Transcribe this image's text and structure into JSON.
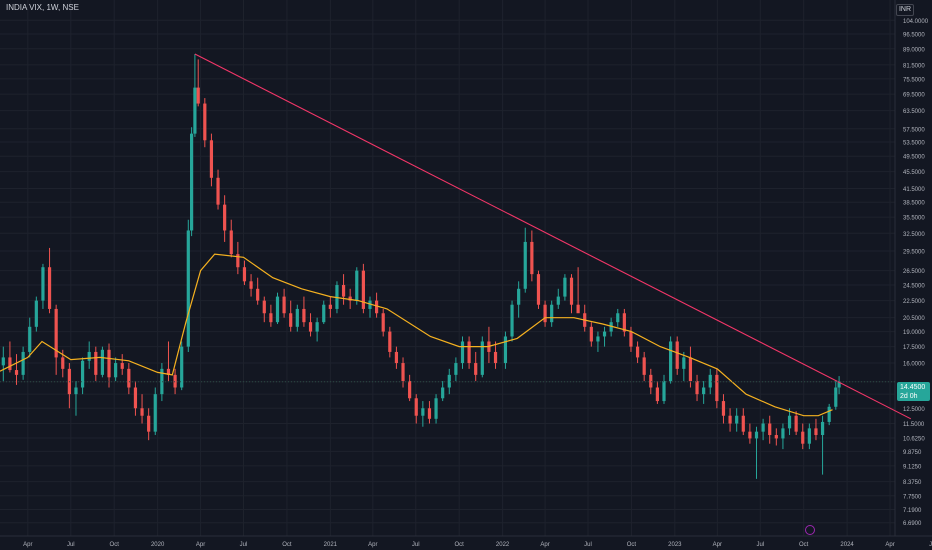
{
  "header": {
    "title": "INDIA VIX, 1W, NSE",
    "currency": "INR"
  },
  "last_price": {
    "value": "14.4500",
    "countdown": "2d 0h"
  },
  "colors": {
    "background": "#131722",
    "grid": "#1e222d",
    "up": "#26a69a",
    "down": "#ef5350",
    "moving_average": "#f5b120",
    "trendline": "#f23668",
    "text": "#b2b5be"
  },
  "chart_data": {
    "type": "candlestick",
    "ticker": "INDIA VIX",
    "interval": "1W",
    "exchange": "NSE",
    "y_scale": "log",
    "ylim": [
      6.5,
      110
    ],
    "xlim": [
      "2019-02",
      "2024-07"
    ],
    "y_ticks": [
      "104.0000",
      "96.5000",
      "89.0000",
      "81.5000",
      "75.5000",
      "69.5000",
      "63.5000",
      "57.5000",
      "53.5000",
      "49.5000",
      "45.5000",
      "41.5000",
      "38.5000",
      "35.5000",
      "32.5000",
      "29.5000",
      "26.5000",
      "24.5000",
      "22.5000",
      "20.5000",
      "19.0000",
      "17.5000",
      "16.0000",
      "14.4500",
      "13.5000",
      "12.5000",
      "11.5000",
      "10.6250",
      "9.8750",
      "9.1250",
      "8.3750",
      "7.7500",
      "7.1900",
      "6.6900"
    ],
    "x_ticks": [
      "Apr",
      "Jul",
      "Oct",
      "2020",
      "Apr",
      "Jul",
      "Oct",
      "2021",
      "Apr",
      "Jul",
      "Oct",
      "2022",
      "Apr",
      "Jul",
      "Oct",
      "2023",
      "Apr",
      "Jul",
      "Oct",
      "2024",
      "Apr",
      "Jul"
    ],
    "tick_dates": [
      "2019-04",
      "2019-07",
      "2019-10",
      "2020-01",
      "2020-04",
      "2020-07",
      "2020-10",
      "2021-01",
      "2021-04",
      "2021-07",
      "2021-10",
      "2022-01",
      "2022-04",
      "2022-07",
      "2022-10",
      "2023-01",
      "2023-04",
      "2023-07",
      "2023-10",
      "2024-01",
      "2024-04",
      "2024-07"
    ],
    "moving_average_path": [
      [
        "2019-02",
        15.3
      ],
      [
        "2019-04",
        16.5
      ],
      [
        "2019-05",
        18.0
      ],
      [
        "2019-07",
        16.3
      ],
      [
        "2019-09",
        16.5
      ],
      [
        "2019-11",
        16.2
      ],
      [
        "2020-01",
        15.2
      ],
      [
        "2020-02",
        15.0
      ],
      [
        "2020-03",
        20.0
      ],
      [
        "2020-04",
        26.5
      ],
      [
        "2020-05",
        29.0
      ],
      [
        "2020-07",
        28.5
      ],
      [
        "2020-09",
        25.5
      ],
      [
        "2020-11",
        24.0
      ],
      [
        "2021-01",
        23.0
      ],
      [
        "2021-03",
        22.5
      ],
      [
        "2021-05",
        21.5
      ],
      [
        "2021-08",
        18.5
      ],
      [
        "2021-10",
        17.5
      ],
      [
        "2021-12",
        17.5
      ],
      [
        "2022-02",
        18.3
      ],
      [
        "2022-04",
        20.5
      ],
      [
        "2022-06",
        20.5
      ],
      [
        "2022-08",
        19.8
      ],
      [
        "2022-10",
        19.0
      ],
      [
        "2022-12",
        17.5
      ],
      [
        "2023-02",
        16.5
      ],
      [
        "2023-04",
        15.5
      ],
      [
        "2023-06",
        13.5
      ],
      [
        "2023-08",
        12.6
      ],
      [
        "2023-10",
        12.0
      ],
      [
        "2023-11",
        12.0
      ],
      [
        "2023-12",
        12.4
      ]
    ],
    "trendline": {
      "start": [
        "2020-03-20",
        86.5
      ],
      "end": [
        "2024-05-15",
        11.8
      ]
    },
    "candles": [
      [
        "2019-02-08",
        15.8,
        17.5,
        14.5,
        16.5
      ],
      [
        "2019-02-22",
        16.5,
        18.0,
        15.2,
        15.4
      ],
      [
        "2019-03-08",
        15.4,
        16.8,
        14.2,
        15.0
      ],
      [
        "2019-03-22",
        15.0,
        17.5,
        14.6,
        17.0
      ],
      [
        "2019-04-05",
        17.0,
        20.5,
        16.5,
        19.5
      ],
      [
        "2019-04-19",
        19.5,
        23.0,
        19.0,
        22.5
      ],
      [
        "2019-05-03",
        22.5,
        27.5,
        21.5,
        27.0
      ],
      [
        "2019-05-17",
        27.0,
        30.0,
        21.0,
        21.5
      ],
      [
        "2019-05-31",
        21.5,
        22.0,
        15.0,
        16.5
      ],
      [
        "2019-06-14",
        16.5,
        17.2,
        14.8,
        15.5
      ],
      [
        "2019-06-28",
        15.5,
        16.0,
        12.5,
        13.5
      ],
      [
        "2019-07-12",
        13.5,
        14.5,
        12.0,
        14.0
      ],
      [
        "2019-07-26",
        14.0,
        16.5,
        13.5,
        16.2
      ],
      [
        "2019-08-09",
        16.2,
        18.0,
        15.5,
        17.0
      ],
      [
        "2019-08-23",
        17.0,
        17.5,
        14.5,
        15.0
      ],
      [
        "2019-09-06",
        15.0,
        17.5,
        14.8,
        17.2
      ],
      [
        "2019-09-20",
        17.2,
        17.8,
        14.0,
        14.8
      ],
      [
        "2019-10-04",
        14.8,
        16.5,
        14.5,
        16.0
      ],
      [
        "2019-10-18",
        16.0,
        16.8,
        15.0,
        15.5
      ],
      [
        "2019-11-01",
        15.5,
        16.0,
        13.5,
        14.0
      ],
      [
        "2019-11-15",
        14.0,
        14.5,
        12.0,
        12.5
      ],
      [
        "2019-11-29",
        12.5,
        13.5,
        11.5,
        12.0
      ],
      [
        "2019-12-13",
        12.0,
        12.5,
        10.5,
        11.0
      ],
      [
        "2019-12-27",
        11.0,
        14.0,
        10.8,
        13.5
      ],
      [
        "2020-01-10",
        13.5,
        16.0,
        13.0,
        15.5
      ],
      [
        "2020-01-24",
        15.5,
        18.0,
        14.5,
        15.0
      ],
      [
        "2020-02-07",
        15.0,
        15.5,
        13.5,
        14.0
      ],
      [
        "2020-02-21",
        14.0,
        18.0,
        13.8,
        17.5
      ],
      [
        "2020-03-06",
        17.5,
        35.0,
        17.0,
        33.0
      ],
      [
        "2020-03-13",
        33.0,
        58.0,
        32.0,
        56.0
      ],
      [
        "2020-03-20",
        56.0,
        86.5,
        55.0,
        72.0
      ],
      [
        "2020-03-27",
        72.0,
        84.0,
        65.0,
        66.0
      ],
      [
        "2020-04-10",
        66.0,
        68.0,
        52.0,
        54.0
      ],
      [
        "2020-04-24",
        54.0,
        56.0,
        42.0,
        44.0
      ],
      [
        "2020-05-08",
        44.0,
        46.0,
        37.0,
        38.0
      ],
      [
        "2020-05-22",
        38.0,
        40.0,
        31.0,
        33.0
      ],
      [
        "2020-06-05",
        33.0,
        35.0,
        28.5,
        29.0
      ],
      [
        "2020-06-19",
        29.0,
        31.0,
        26.0,
        27.0
      ],
      [
        "2020-07-03",
        27.0,
        28.0,
        24.5,
        25.0
      ],
      [
        "2020-07-17",
        25.0,
        26.0,
        23.0,
        24.0
      ],
      [
        "2020-07-31",
        24.0,
        25.5,
        22.0,
        22.5
      ],
      [
        "2020-08-14",
        22.5,
        23.0,
        20.0,
        21.0
      ],
      [
        "2020-08-28",
        21.0,
        22.0,
        19.5,
        20.0
      ],
      [
        "2020-09-11",
        20.0,
        23.5,
        19.8,
        23.0
      ],
      [
        "2020-09-25",
        23.0,
        24.0,
        20.5,
        21.0
      ],
      [
        "2020-10-09",
        21.0,
        22.5,
        19.0,
        19.5
      ],
      [
        "2020-10-23",
        19.5,
        22.0,
        19.0,
        21.5
      ],
      [
        "2020-11-06",
        21.5,
        23.0,
        19.5,
        20.0
      ],
      [
        "2020-11-20",
        20.0,
        21.0,
        18.5,
        19.0
      ],
      [
        "2020-12-04",
        19.0,
        20.5,
        18.0,
        20.0
      ],
      [
        "2020-12-18",
        20.0,
        22.5,
        19.8,
        22.0
      ],
      [
        "2021-01-01",
        22.0,
        23.0,
        20.5,
        21.5
      ],
      [
        "2021-01-15",
        21.5,
        25.0,
        21.0,
        24.5
      ],
      [
        "2021-01-29",
        24.5,
        26.0,
        22.0,
        23.0
      ],
      [
        "2021-02-12",
        23.0,
        24.0,
        21.5,
        22.5
      ],
      [
        "2021-02-26",
        22.5,
        27.0,
        22.0,
        26.5
      ],
      [
        "2021-03-12",
        26.5,
        27.5,
        21.0,
        21.5
      ],
      [
        "2021-03-26",
        21.5,
        23.0,
        20.5,
        22.5
      ],
      [
        "2021-04-09",
        22.5,
        23.5,
        20.5,
        21.0
      ],
      [
        "2021-04-23",
        21.0,
        21.5,
        18.5,
        19.0
      ],
      [
        "2021-05-07",
        19.0,
        19.5,
        16.5,
        17.0
      ],
      [
        "2021-05-21",
        17.0,
        17.5,
        15.5,
        16.0
      ],
      [
        "2021-06-04",
        16.0,
        16.5,
        14.0,
        14.5
      ],
      [
        "2021-06-18",
        14.5,
        15.0,
        13.0,
        13.2
      ],
      [
        "2021-07-02",
        13.2,
        13.5,
        11.5,
        12.0
      ],
      [
        "2021-07-16",
        12.0,
        13.0,
        11.3,
        12.5
      ],
      [
        "2021-07-30",
        12.5,
        13.0,
        11.5,
        11.8
      ],
      [
        "2021-08-13",
        11.8,
        13.5,
        11.5,
        13.2
      ],
      [
        "2021-08-27",
        13.2,
        14.5,
        13.0,
        14.0
      ],
      [
        "2021-09-10",
        14.0,
        15.5,
        13.5,
        15.0
      ],
      [
        "2021-09-24",
        15.0,
        16.5,
        14.5,
        16.0
      ],
      [
        "2021-10-08",
        16.0,
        18.5,
        15.5,
        18.0
      ],
      [
        "2021-10-22",
        18.0,
        18.5,
        15.5,
        16.0
      ],
      [
        "2021-11-05",
        16.0,
        17.0,
        14.5,
        15.0
      ],
      [
        "2021-11-19",
        15.0,
        18.5,
        14.8,
        18.0
      ],
      [
        "2021-12-03",
        18.0,
        19.5,
        16.0,
        17.0
      ],
      [
        "2021-12-17",
        17.0,
        18.0,
        15.5,
        16.0
      ],
      [
        "2022-01-07",
        16.0,
        19.0,
        15.5,
        18.5
      ],
      [
        "2022-01-21",
        18.5,
        22.5,
        18.0,
        22.0
      ],
      [
        "2022-02-04",
        22.0,
        25.0,
        20.5,
        24.0
      ],
      [
        "2022-02-18",
        24.0,
        33.5,
        23.5,
        31.0
      ],
      [
        "2022-03-04",
        31.0,
        33.0,
        25.0,
        26.0
      ],
      [
        "2022-03-18",
        26.0,
        26.5,
        21.5,
        22.0
      ],
      [
        "2022-04-01",
        22.0,
        22.5,
        19.5,
        20.0
      ],
      [
        "2022-04-15",
        20.0,
        22.5,
        19.5,
        22.0
      ],
      [
        "2022-04-29",
        22.0,
        24.0,
        21.5,
        23.0
      ],
      [
        "2022-05-13",
        23.0,
        26.0,
        22.5,
        25.5
      ],
      [
        "2022-05-27",
        25.5,
        26.0,
        21.0,
        22.0
      ],
      [
        "2022-06-10",
        22.0,
        27.0,
        21.5,
        21.0
      ],
      [
        "2022-06-24",
        21.0,
        22.0,
        19.0,
        19.5
      ],
      [
        "2022-07-08",
        19.5,
        20.0,
        17.5,
        18.0
      ],
      [
        "2022-07-22",
        18.0,
        19.0,
        17.0,
        18.5
      ],
      [
        "2022-08-05",
        18.5,
        19.5,
        17.5,
        19.0
      ],
      [
        "2022-08-19",
        19.0,
        20.5,
        18.5,
        20.0
      ],
      [
        "2022-09-02",
        20.0,
        21.5,
        19.5,
        21.0
      ],
      [
        "2022-09-16",
        21.0,
        21.5,
        18.5,
        19.0
      ],
      [
        "2022-09-30",
        19.0,
        19.5,
        17.0,
        17.5
      ],
      [
        "2022-10-14",
        17.5,
        18.0,
        16.0,
        16.5
      ],
      [
        "2022-10-28",
        16.5,
        17.0,
        14.5,
        15.0
      ],
      [
        "2022-11-11",
        15.0,
        15.5,
        13.5,
        14.0
      ],
      [
        "2022-11-25",
        14.0,
        14.5,
        12.8,
        13.0
      ],
      [
        "2022-12-09",
        13.0,
        15.0,
        12.8,
        14.5
      ],
      [
        "2022-12-23",
        14.5,
        18.5,
        14.3,
        18.0
      ],
      [
        "2023-01-06",
        18.0,
        18.5,
        15.0,
        15.5
      ],
      [
        "2023-01-20",
        15.5,
        17.0,
        14.5,
        16.5
      ],
      [
        "2023-02-03",
        16.5,
        17.5,
        14.0,
        14.5
      ],
      [
        "2023-02-17",
        14.5,
        15.0,
        13.0,
        13.5
      ],
      [
        "2023-03-03",
        13.5,
        14.5,
        12.8,
        14.0
      ],
      [
        "2023-03-17",
        14.0,
        15.5,
        13.5,
        15.0
      ],
      [
        "2023-03-31",
        15.0,
        15.5,
        12.5,
        13.0
      ],
      [
        "2023-04-14",
        13.0,
        13.5,
        11.5,
        12.0
      ],
      [
        "2023-04-28",
        12.0,
        12.5,
        11.0,
        11.5
      ],
      [
        "2023-05-12",
        11.5,
        12.5,
        11.0,
        12.0
      ],
      [
        "2023-05-26",
        12.0,
        12.5,
        10.8,
        11.0
      ],
      [
        "2023-06-09",
        11.0,
        11.5,
        10.3,
        10.6
      ],
      [
        "2023-06-23",
        10.6,
        11.3,
        8.5,
        11.0
      ],
      [
        "2023-07-07",
        11.0,
        11.8,
        10.5,
        11.5
      ],
      [
        "2023-07-21",
        11.5,
        12.0,
        10.3,
        10.8
      ],
      [
        "2023-08-04",
        10.8,
        11.2,
        10.2,
        10.6
      ],
      [
        "2023-08-18",
        10.6,
        11.5,
        10.0,
        11.2
      ],
      [
        "2023-09-01",
        11.2,
        12.5,
        10.8,
        12.0
      ],
      [
        "2023-09-15",
        12.0,
        12.3,
        10.8,
        11.0
      ],
      [
        "2023-09-29",
        11.0,
        11.5,
        10.0,
        10.3
      ],
      [
        "2023-10-13",
        10.3,
        11.5,
        10.0,
        11.2
      ],
      [
        "2023-10-27",
        11.2,
        11.8,
        10.5,
        10.8
      ],
      [
        "2023-11-10",
        10.8,
        12.0,
        8.7,
        11.6
      ],
      [
        "2023-11-24",
        11.6,
        12.8,
        11.4,
        12.6
      ],
      [
        "2023-12-08",
        12.6,
        14.5,
        12.4,
        14.0
      ],
      [
        "2023-12-15",
        14.0,
        14.9,
        13.5,
        14.45
      ]
    ]
  }
}
